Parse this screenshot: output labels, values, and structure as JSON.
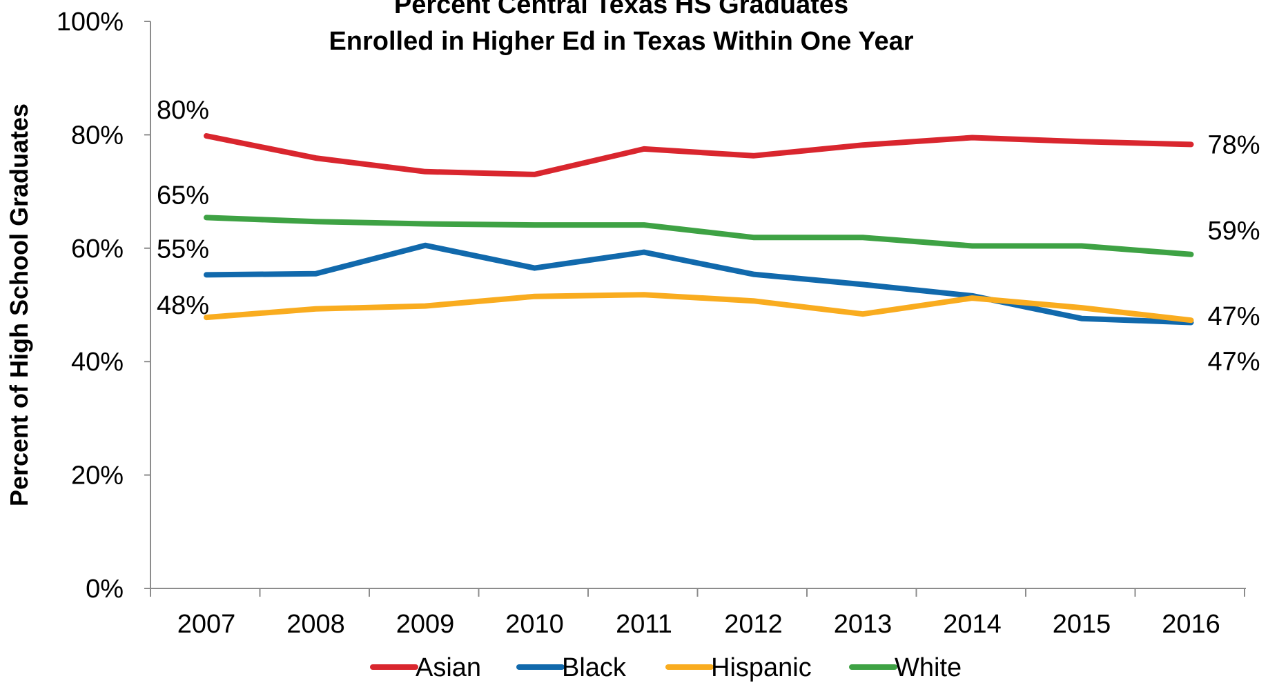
{
  "chart_data": {
    "type": "line",
    "title": "Percent Central Texas HS Graduates\nEnrolled in Higher Ed in Texas Within One Year",
    "xlabel": "",
    "ylabel": "Percent of High School Graduates",
    "x": [
      "2007",
      "2008",
      "2009",
      "2010",
      "2011",
      "2012",
      "2013",
      "2014",
      "2015",
      "2016"
    ],
    "ylim": [
      0,
      100
    ],
    "yticks": [
      {
        "value": 0,
        "label": "0%"
      },
      {
        "value": 20,
        "label": "20%"
      },
      {
        "value": 40,
        "label": "40%"
      },
      {
        "value": 60,
        "label": "60%"
      },
      {
        "value": 80,
        "label": "80%"
      },
      {
        "value": 100,
        "label": "100%"
      }
    ],
    "grid": false,
    "legend_position": "bottom",
    "series": [
      {
        "name": "Asian",
        "color": "#d9262e",
        "values": [
          79.8,
          75.9,
          73.5,
          73.0,
          77.5,
          76.3,
          78.2,
          79.5,
          78.8,
          78.3
        ],
        "start_label": "80%",
        "end_label": "78%"
      },
      {
        "name": "Black",
        "color": "#1169ac",
        "values": [
          55.3,
          55.5,
          60.5,
          56.5,
          59.3,
          55.4,
          53.6,
          51.6,
          47.6,
          46.9
        ],
        "start_label": "55%",
        "end_label": "47%"
      },
      {
        "name": "Hispanic",
        "color": "#f9ac1f",
        "values": [
          47.8,
          49.3,
          49.8,
          51.5,
          51.8,
          50.7,
          48.4,
          51.2,
          49.5,
          47.3
        ],
        "start_label": "48%",
        "end_label": "47%"
      },
      {
        "name": "White",
        "color": "#3ea244",
        "values": [
          65.4,
          64.7,
          64.3,
          64.1,
          64.1,
          61.9,
          61.9,
          60.4,
          60.4,
          58.9
        ],
        "start_label": "65%",
        "end_label": "59%"
      }
    ]
  }
}
